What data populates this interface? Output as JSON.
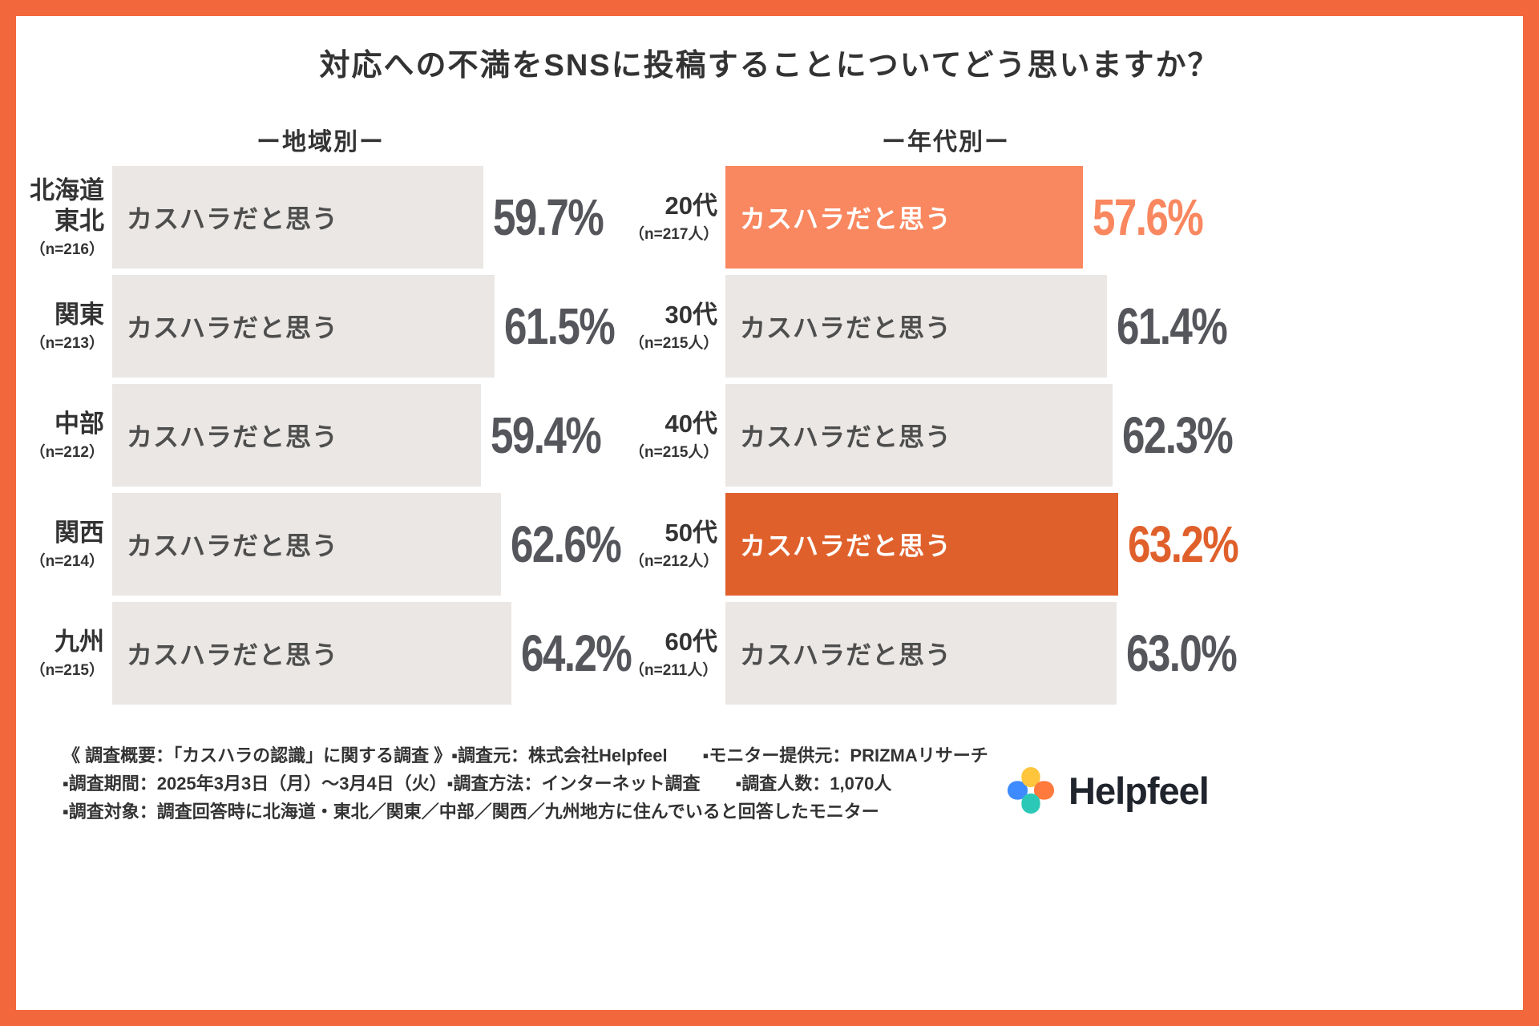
{
  "title": "対応への不満をSNSに投稿することについてどう思いますか？",
  "colors": {
    "border": "#F2673B",
    "bar_gray": "#EAE7E4",
    "bar_light_orange": "#F9875F",
    "bar_dark_orange": "#E0602B",
    "pct_gray": "#55565B",
    "text_dark": "#333333"
  },
  "chart_data": [
    {
      "type": "bar",
      "orientation": "horizontal",
      "title": "ー地域別ー",
      "bar_label": "カスハラだと思う",
      "unit": "%",
      "categories": [
        "北海道\n東北",
        "関東",
        "中部",
        "関西",
        "九州"
      ],
      "n_labels": [
        "（n=216）",
        "（n=213）",
        "（n=212）",
        "（n=214）",
        "（n=215）"
      ],
      "values": [
        59.7,
        61.5,
        59.4,
        62.6,
        64.2
      ],
      "highlight": [
        null,
        null,
        null,
        null,
        null
      ]
    },
    {
      "type": "bar",
      "orientation": "horizontal",
      "title": "ー年代別ー",
      "bar_label": "カスハラだと思う",
      "unit": "%",
      "categories": [
        "20代",
        "30代",
        "40代",
        "50代",
        "60代"
      ],
      "n_labels": [
        "（n=217人）",
        "（n=215人）",
        "（n=215人）",
        "（n=212人）",
        "（n=211人）"
      ],
      "values": [
        57.6,
        61.4,
        62.3,
        63.2,
        63.0
      ],
      "highlight": [
        "light",
        null,
        null,
        "dark",
        null
      ]
    }
  ],
  "footer": {
    "line1": "《 調査概要：「カスハラの認識」に関する調査 》▪調査元：株式会社Helpfeel　　▪モニター提供元：PRIZMAリサーチ",
    "line2": "▪調査期間：2025年3月3日（月）〜3月4日（火）▪調査方法：インターネット調査　　▪調査人数：1,070人",
    "line3": "▪調査対象：調査回答時に北海道・東北／関東／中部／関西／九州地方に住んでいると回答したモニター"
  },
  "logo": {
    "text": "Helpfeel"
  }
}
